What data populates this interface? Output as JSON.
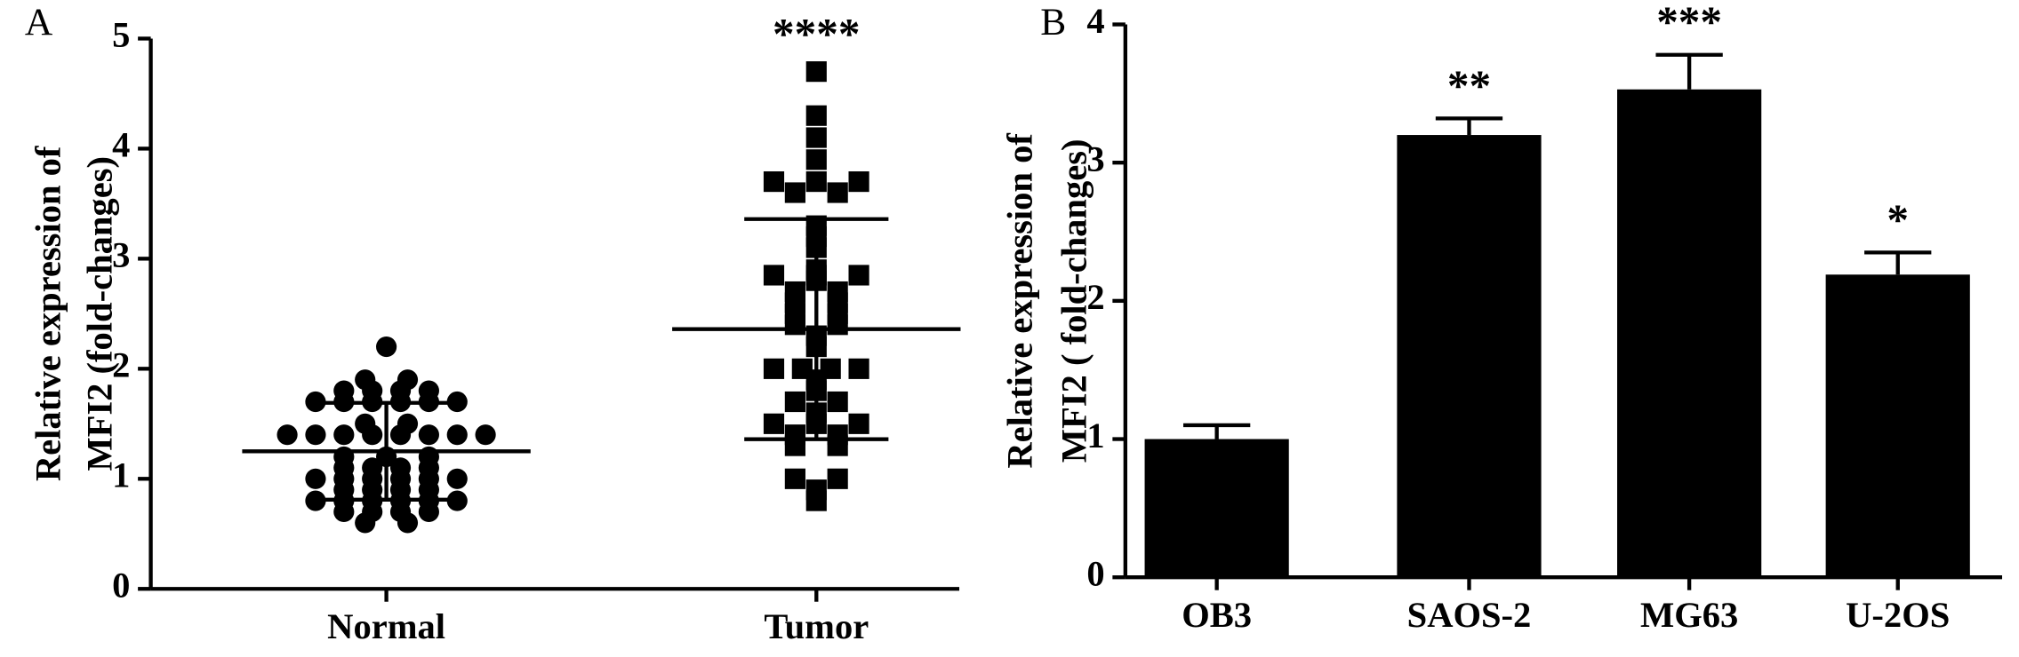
{
  "chart_data": [
    {
      "type": "dot",
      "panel_label": "A",
      "ylabel": [
        "Relative expression of",
        "MFI2 (fold-changes)"
      ],
      "categories": [
        "Normal",
        "Tumor"
      ],
      "groups": [
        {
          "marker": "circle",
          "color": "#000000",
          "mean": 1.25,
          "sd": 0.44,
          "values": [
            2.2,
            1.9,
            1.9,
            1.8,
            1.8,
            1.8,
            1.8,
            1.7,
            1.7,
            1.7,
            1.7,
            1.7,
            1.7,
            1.5,
            1.5,
            1.4,
            1.4,
            1.4,
            1.4,
            1.4,
            1.4,
            1.4,
            1.4,
            1.2,
            1.2,
            1.2,
            1.1,
            1.1,
            1.1,
            1.1,
            1.0,
            1.0,
            1.0,
            1.0,
            1.0,
            1.0,
            0.9,
            0.9,
            0.9,
            0.9,
            0.8,
            0.8,
            0.8,
            0.8,
            0.8,
            0.8,
            0.7,
            0.7,
            0.7,
            0.7,
            0.6,
            0.6
          ]
        },
        {
          "marker": "square",
          "color": "#000000",
          "mean": 2.36,
          "sd": 1.0,
          "significance": "****",
          "values": [
            4.7,
            4.3,
            4.1,
            3.9,
            3.7,
            3.7,
            3.7,
            3.6,
            3.6,
            3.3,
            3.2,
            3.1,
            2.9,
            2.85,
            2.85,
            2.85,
            2.8,
            2.7,
            2.7,
            2.6,
            2.6,
            2.5,
            2.5,
            2.4,
            2.4,
            2.3,
            2.2,
            2.0,
            2.0,
            2.0,
            2.0,
            1.9,
            1.8,
            1.7,
            1.7,
            1.6,
            1.5,
            1.5,
            1.5,
            1.4,
            1.4,
            1.3,
            1.3,
            1.0,
            1.0,
            0.9,
            0.8
          ]
        }
      ],
      "ylim": [
        0,
        5
      ],
      "yticks": [
        0,
        1,
        2,
        3,
        4,
        5
      ]
    },
    {
      "type": "bar",
      "panel_label": "B",
      "ylabel": [
        "Relative expression of",
        "MFI2 ( fold-changes)"
      ],
      "categories": [
        "OB3",
        "SAOS-2",
        "MG63",
        "U-2OS"
      ],
      "values": [
        1.0,
        3.2,
        3.53,
        2.19
      ],
      "errors": [
        0.1,
        0.12,
        0.25,
        0.16
      ],
      "significance": [
        null,
        "**",
        "***",
        "*"
      ],
      "color": "#000000",
      "ylim": [
        0,
        4
      ],
      "yticks": [
        0,
        1,
        2,
        3,
        4
      ]
    }
  ]
}
